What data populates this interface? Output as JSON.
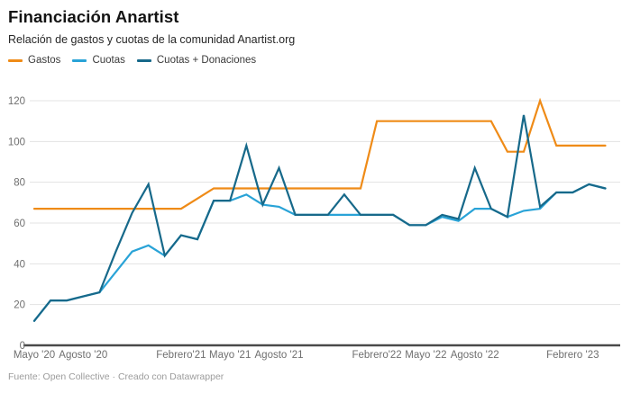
{
  "header": {
    "title": "Financiación Anartist",
    "subtitle": "Relación de gastos y cuotas de la comunidad Anartist.org"
  },
  "footer": {
    "text": "Fuente: Open Collective · Creado con Datawrapper"
  },
  "chart_data": {
    "type": "line",
    "title": "Financiación Anartist",
    "subtitle": "Relación de gastos y cuotas de la comunidad Anartist.org",
    "grid": true,
    "legend_position": "top",
    "ylim": [
      0,
      126
    ],
    "y_ticks": [
      0,
      20,
      40,
      60,
      80,
      100,
      120
    ],
    "x_monthly": [
      "2020-05",
      "2020-06",
      "2020-07",
      "2020-08",
      "2020-09",
      "2020-10",
      "2020-11",
      "2020-12",
      "2021-01",
      "2021-02",
      "2021-03",
      "2021-04",
      "2021-05",
      "2021-06",
      "2021-07",
      "2021-08",
      "2021-09",
      "2021-10",
      "2021-11",
      "2021-12",
      "2022-01",
      "2022-02",
      "2022-03",
      "2022-04",
      "2022-05",
      "2022-06",
      "2022-07",
      "2022-08",
      "2022-09",
      "2022-10",
      "2022-11",
      "2022-12",
      "2023-01",
      "2023-02",
      "2023-03",
      "2023-04"
    ],
    "x_ticks": [
      {
        "label": "Mayo '20",
        "month_index": 0
      },
      {
        "label": "Agosto '20",
        "month_index": 3
      },
      {
        "label": "Febrero'21",
        "month_index": 9
      },
      {
        "label": "Mayo '21",
        "month_index": 12
      },
      {
        "label": "Agosto '21",
        "month_index": 15
      },
      {
        "label": "Febrero'22",
        "month_index": 21
      },
      {
        "label": "Mayo '22",
        "month_index": 24
      },
      {
        "label": "Agosto '22",
        "month_index": 27
      },
      {
        "label": "Febrero '23",
        "month_index": 33
      }
    ],
    "series": [
      {
        "name": "Gastos",
        "color": "#ef8b17",
        "values": [
          67,
          67,
          67,
          67,
          67,
          67,
          67,
          67,
          67,
          67,
          72,
          77,
          77,
          77,
          77,
          77,
          77,
          77,
          77,
          77,
          77,
          110,
          110,
          110,
          110,
          110,
          110,
          110,
          110,
          95,
          95,
          120,
          98,
          98,
          98,
          98
        ]
      },
      {
        "name": "Cuotas",
        "color": "#29a3d7",
        "values": [
          12,
          22,
          22,
          24,
          26,
          36,
          46,
          49,
          44,
          54,
          52,
          71,
          71,
          74,
          69,
          68,
          64,
          64,
          64,
          64,
          64,
          64,
          64,
          59,
          59,
          63,
          61,
          67,
          67,
          63,
          66,
          67,
          75,
          75,
          79,
          77
        ]
      },
      {
        "name": "Cuotas + Donaciones",
        "color": "#17698a",
        "values": [
          12,
          22,
          22,
          24,
          26,
          46,
          65,
          79,
          44,
          54,
          52,
          71,
          71,
          98,
          69,
          87,
          64,
          64,
          64,
          74,
          64,
          64,
          64,
          59,
          59,
          64,
          62,
          87,
          67,
          63,
          113,
          68,
          75,
          75,
          79,
          77
        ]
      }
    ]
  }
}
